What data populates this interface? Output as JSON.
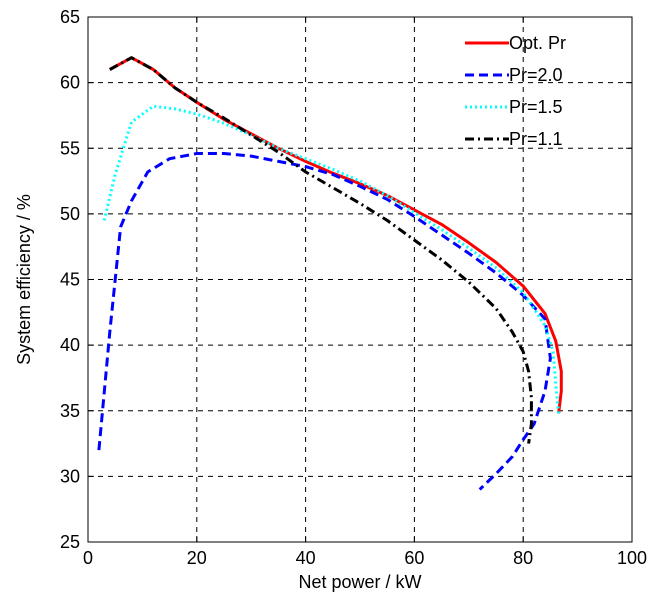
{
  "chart_data": {
    "type": "line",
    "title": "",
    "xlabel": "Net power / kW",
    "ylabel": "System efficiency / %",
    "xlim": [
      0,
      100
    ],
    "ylim": [
      25,
      65
    ],
    "xticks": [
      0,
      20,
      40,
      60,
      80,
      100
    ],
    "yticks": [
      25,
      30,
      35,
      40,
      45,
      50,
      55,
      60,
      65
    ],
    "xtick_labels": [
      "0",
      "20",
      "40",
      "60",
      "80",
      "100"
    ],
    "ytick_labels": [
      "25",
      "30",
      "35",
      "40",
      "45",
      "50",
      "55",
      "60",
      "65"
    ],
    "grid": true,
    "legend_position": "top-right",
    "series": [
      {
        "name": "Opt. Pr",
        "color": "#ff0000",
        "dash": "solid",
        "points": [
          [
            4,
            61.0
          ],
          [
            8,
            61.9
          ],
          [
            12,
            61.0
          ],
          [
            16,
            59.6
          ],
          [
            20,
            58.5
          ],
          [
            25,
            57.2
          ],
          [
            30,
            56.1
          ],
          [
            35,
            55.0
          ],
          [
            40,
            54.0
          ],
          [
            45,
            53.1
          ],
          [
            50,
            52.3
          ],
          [
            55,
            51.4
          ],
          [
            60,
            50.3
          ],
          [
            65,
            49.2
          ],
          [
            70,
            47.8
          ],
          [
            75,
            46.3
          ],
          [
            80,
            44.5
          ],
          [
            84,
            42.4
          ],
          [
            86,
            40.3
          ],
          [
            87,
            38.0
          ],
          [
            87,
            36.5
          ],
          [
            86.5,
            34.8
          ]
        ]
      },
      {
        "name": "Pr=2.0",
        "color": "#0000ff",
        "dash": "dashed",
        "points": [
          [
            2,
            32.0
          ],
          [
            4,
            41.0
          ],
          [
            6,
            49.0
          ],
          [
            8,
            51.0
          ],
          [
            11,
            53.2
          ],
          [
            15,
            54.2
          ],
          [
            20,
            54.6
          ],
          [
            25,
            54.6
          ],
          [
            30,
            54.4
          ],
          [
            35,
            54.0
          ],
          [
            40,
            53.6
          ],
          [
            45,
            53.0
          ],
          [
            50,
            52.1
          ],
          [
            55,
            51.1
          ],
          [
            60,
            49.8
          ],
          [
            65,
            48.4
          ],
          [
            70,
            47.0
          ],
          [
            75,
            45.5
          ],
          [
            80,
            43.8
          ],
          [
            84,
            42.0
          ],
          [
            85,
            39.0
          ],
          [
            84,
            36.5
          ],
          [
            82,
            34.0
          ],
          [
            80,
            32.8
          ],
          [
            78,
            31.5
          ],
          [
            75,
            30.2
          ],
          [
            72,
            29.0
          ]
        ]
      },
      {
        "name": "Pr=1.5",
        "color": "#00ffff",
        "dash": "dotted",
        "points": [
          [
            3,
            49.5
          ],
          [
            5,
            53.0
          ],
          [
            8,
            57.0
          ],
          [
            12,
            58.2
          ],
          [
            16,
            58.0
          ],
          [
            20,
            57.6
          ],
          [
            25,
            56.9
          ],
          [
            30,
            56.0
          ],
          [
            35,
            55.0
          ],
          [
            40,
            54.2
          ],
          [
            45,
            53.4
          ],
          [
            50,
            52.5
          ],
          [
            55,
            51.4
          ],
          [
            60,
            50.1
          ],
          [
            65,
            48.8
          ],
          [
            70,
            47.4
          ],
          [
            75,
            45.9
          ],
          [
            80,
            44.0
          ],
          [
            84,
            41.5
          ],
          [
            85.5,
            39.5
          ],
          [
            86,
            37.0
          ],
          [
            86.5,
            34.8
          ]
        ]
      },
      {
        "name": "Pr=1.1",
        "color": "#000000",
        "dash": "dashdot",
        "points": [
          [
            4,
            61.0
          ],
          [
            8,
            61.9
          ],
          [
            12,
            61.0
          ],
          [
            16,
            59.6
          ],
          [
            20,
            58.5
          ],
          [
            25,
            57.3
          ],
          [
            30,
            56.0
          ],
          [
            35,
            54.7
          ],
          [
            40,
            53.2
          ],
          [
            45,
            52.0
          ],
          [
            50,
            50.8
          ],
          [
            55,
            49.5
          ],
          [
            60,
            48.0
          ],
          [
            65,
            46.5
          ],
          [
            70,
            44.8
          ],
          [
            75,
            42.8
          ],
          [
            78,
            41.0
          ],
          [
            80,
            39.5
          ],
          [
            81,
            38.0
          ],
          [
            81.5,
            36.0
          ],
          [
            81.5,
            34.0
          ],
          [
            81,
            32.5
          ]
        ]
      }
    ]
  }
}
